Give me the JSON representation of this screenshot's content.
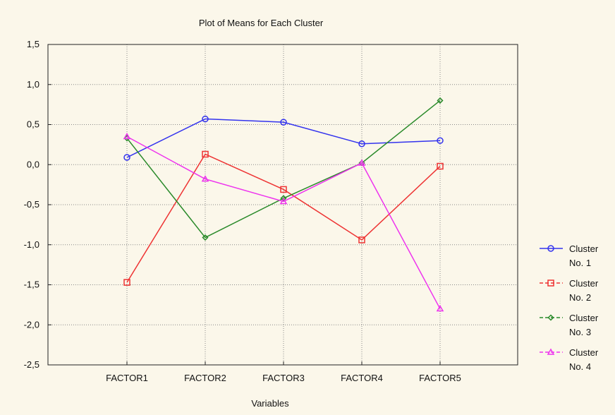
{
  "chart_data": {
    "type": "line",
    "title": "Plot of Means for Each Cluster",
    "xlabel": "Variables",
    "ylabel": "",
    "categories": [
      "FACTOR1",
      "FACTOR2",
      "FACTOR3",
      "FACTOR4",
      "FACTOR5"
    ],
    "ylim": [
      -2.5,
      1.5
    ],
    "yticks": [
      1.5,
      1.0,
      0.5,
      0.0,
      -0.5,
      -1.0,
      -1.5,
      -2.0,
      -2.5
    ],
    "ytick_labels": [
      "1,5",
      "1,0",
      "0,5",
      "0,0",
      "-0,5",
      "-1,0",
      "-1,5",
      "-2,0",
      "-2,5"
    ],
    "grid": true,
    "legend_position": "right",
    "series": [
      {
        "name": "Cluster No. 1",
        "name_lines": [
          "Cluster",
          "No. 1"
        ],
        "color": "#3333ee",
        "marker": "circle",
        "values": [
          0.09,
          0.57,
          0.53,
          0.26,
          0.3
        ]
      },
      {
        "name": "Cluster No. 2",
        "name_lines": [
          "Cluster",
          "No. 2"
        ],
        "color": "#ee3333",
        "marker": "square",
        "values": [
          -1.47,
          0.13,
          -0.31,
          -0.94,
          -0.02
        ]
      },
      {
        "name": "Cluster No. 3",
        "name_lines": [
          "Cluster",
          "No. 3"
        ],
        "color": "#2a8a2a",
        "marker": "diamond",
        "values": [
          0.33,
          -0.91,
          -0.42,
          0.02,
          0.8
        ]
      },
      {
        "name": "Cluster No. 4",
        "name_lines": [
          "Cluster",
          "No. 4"
        ],
        "color": "#ee33ee",
        "marker": "triangle",
        "values": [
          0.35,
          -0.18,
          -0.46,
          0.02,
          -1.8
        ]
      }
    ]
  }
}
